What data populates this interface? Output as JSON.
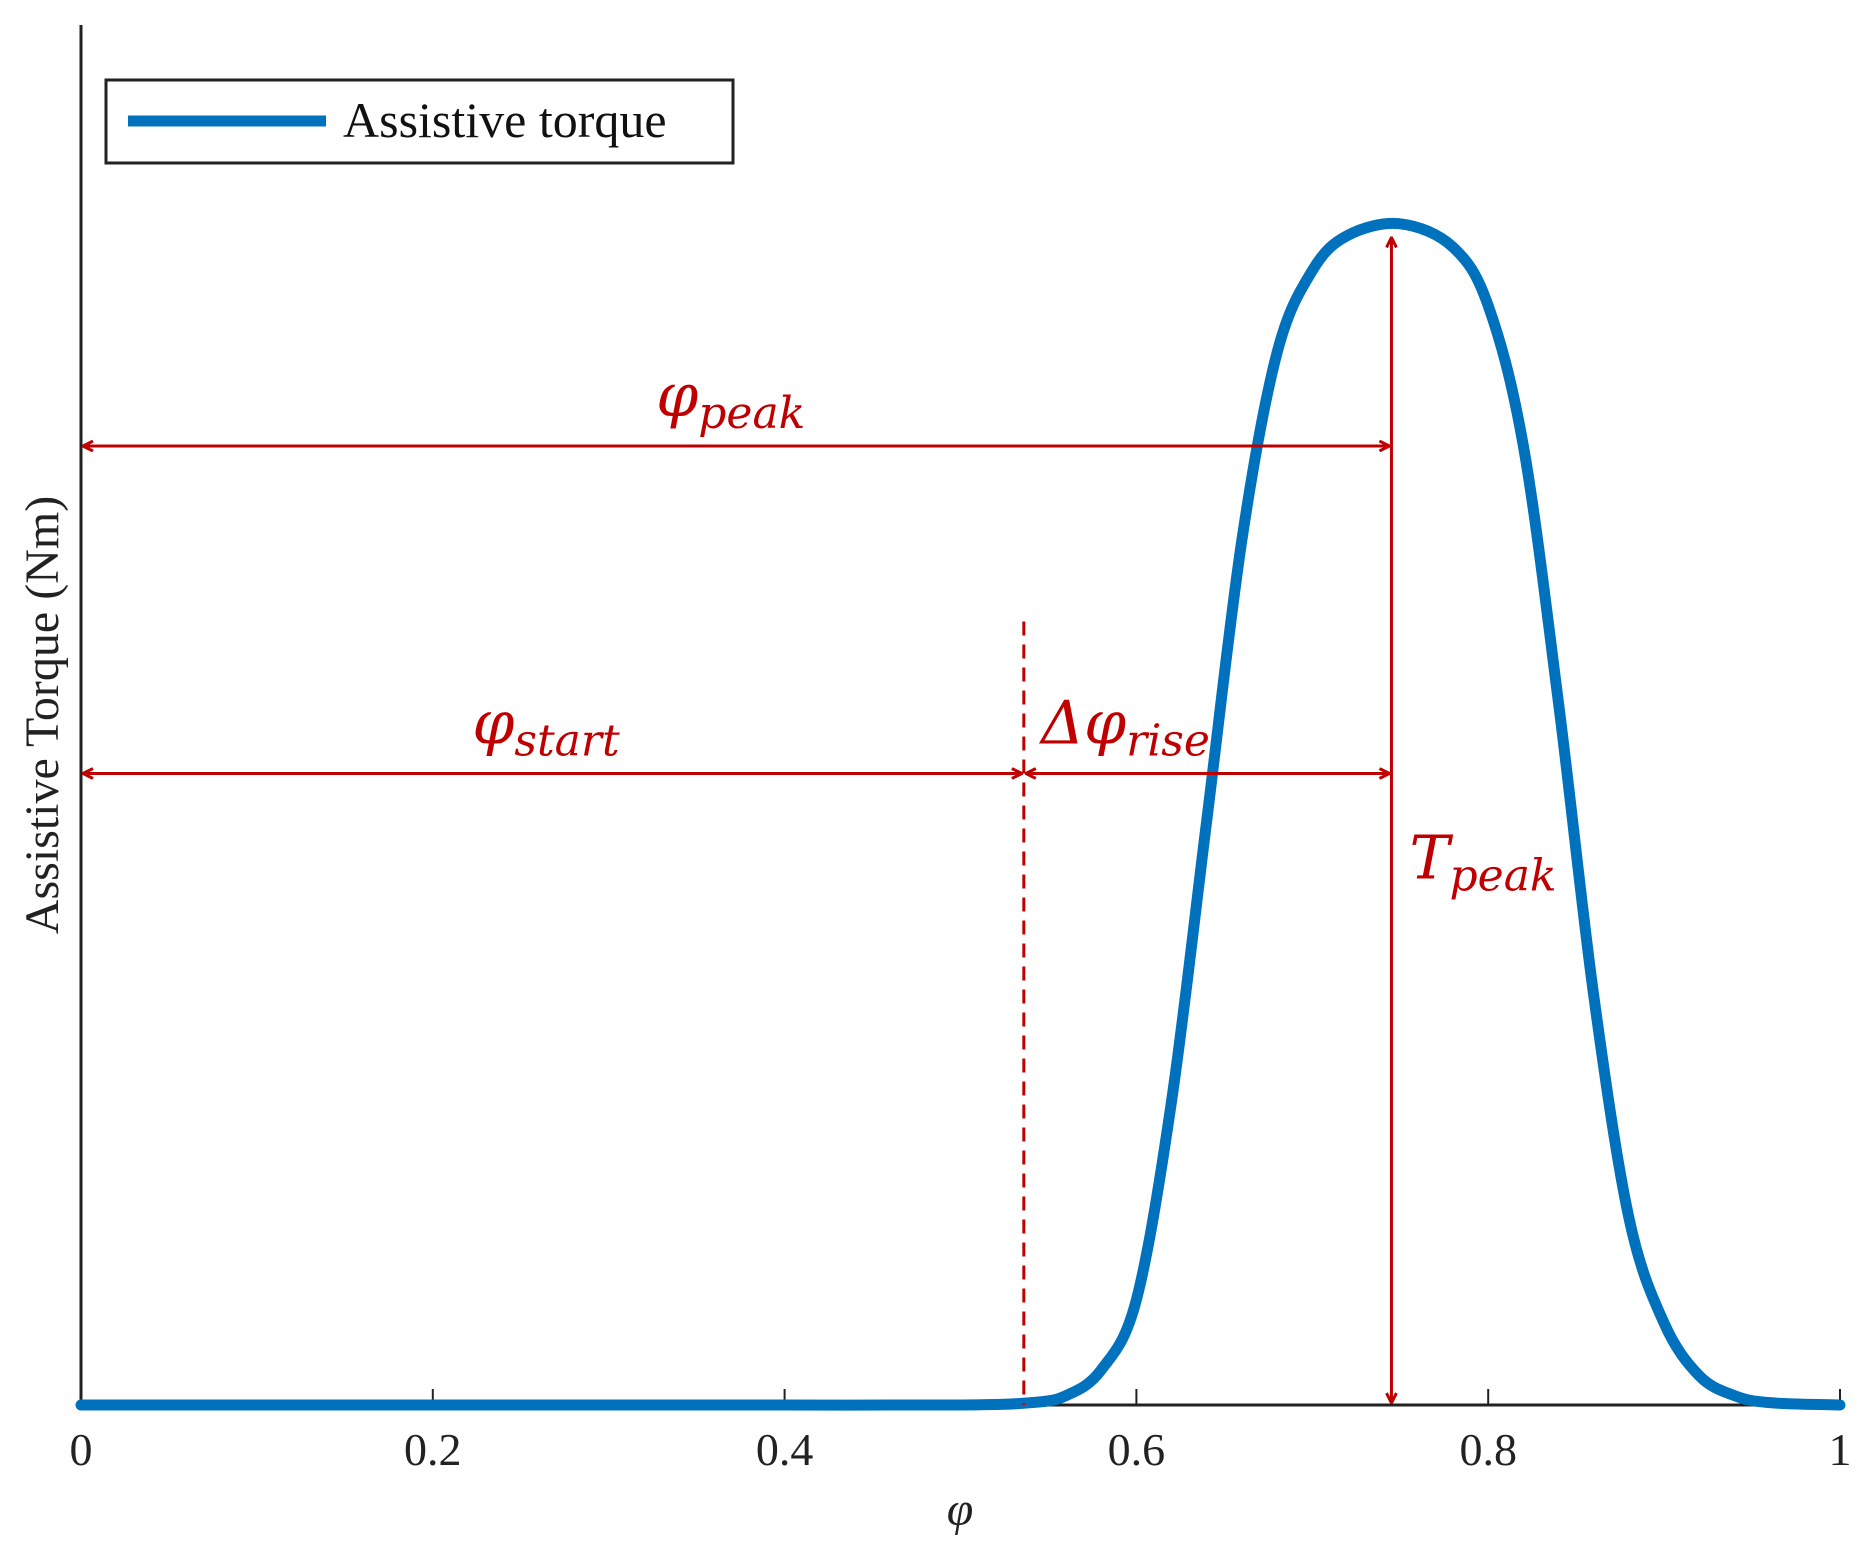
{
  "chart_data": {
    "type": "line",
    "xlabel": "φ",
    "ylabel": "Assistive Torque (Nm)",
    "xlim": [
      0,
      1
    ],
    "ylim": [
      0,
      1.18
    ],
    "x_ticks": [
      "0",
      "0.2",
      "0.4",
      "0.6",
      "0.8",
      "1"
    ],
    "x_tick_values": [
      0,
      0.2,
      0.4,
      0.6,
      0.8,
      1
    ],
    "y_ticks_shown": false,
    "grid": false,
    "legend": {
      "position": "top-left",
      "entries": [
        "Assistive torque"
      ]
    },
    "series": [
      {
        "name": "Assistive torque",
        "color": "#0072BD",
        "x": [
          0,
          0.1,
          0.2,
          0.3,
          0.4,
          0.5,
          0.54,
          0.56,
          0.58,
          0.6,
          0.62,
          0.64,
          0.66,
          0.68,
          0.7,
          0.72,
          0.75,
          0.78,
          0.8,
          0.82,
          0.84,
          0.86,
          0.88,
          0.9,
          0.92,
          0.94,
          0.96,
          1.0
        ],
        "y": [
          0,
          0,
          0,
          0,
          0,
          0,
          0.002,
          0.008,
          0.03,
          0.09,
          0.26,
          0.5,
          0.74,
          0.9,
          0.97,
          1.0,
          1.01,
          0.99,
          0.94,
          0.82,
          0.6,
          0.35,
          0.16,
          0.07,
          0.025,
          0.008,
          0.002,
          0.0
        ]
      }
    ],
    "annotations": [
      {
        "id": "phi_peak",
        "main": "φ",
        "sub": "peak",
        "x_from": 0,
        "x_to": 0.745,
        "y": 0.82,
        "color": "#c00000"
      },
      {
        "id": "phi_start",
        "main": "φ",
        "sub": "start",
        "x_from": 0,
        "x_to": 0.536,
        "y": 0.54,
        "color": "#c00000"
      },
      {
        "id": "delta_phi_rise",
        "main": "Δφ",
        "sub": "rise",
        "x_from": 0.536,
        "x_to": 0.745,
        "y": 0.54,
        "color": "#c00000"
      },
      {
        "id": "t_peak",
        "main": "T",
        "sub": "peak",
        "x": 0.745,
        "y_from": 0,
        "y_to": 1.0,
        "color": "#c00000"
      }
    ],
    "marker_line": {
      "x": 0.536,
      "y_top": 0.67,
      "style": "dashed",
      "color": "#c00000"
    }
  }
}
